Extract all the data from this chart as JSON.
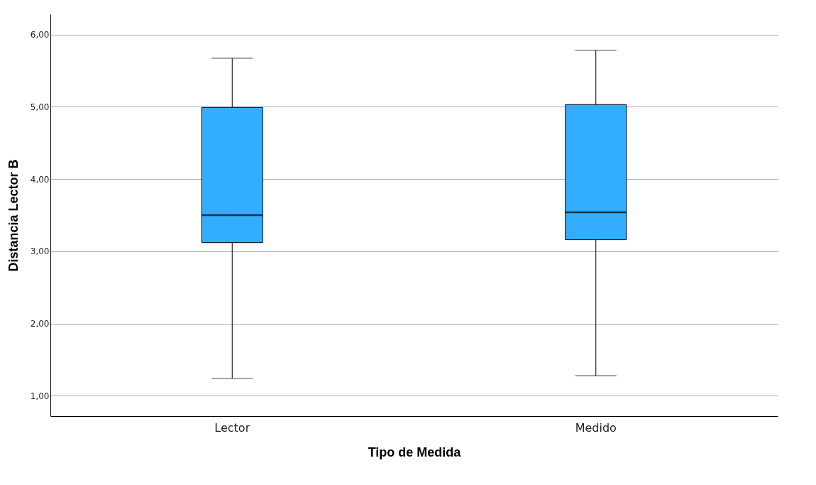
{
  "chart_data": {
    "type": "box",
    "xlabel": "Tipo de Medida",
    "ylabel": "Distancia Lector B",
    "categories": [
      "Lector",
      "Medido"
    ],
    "boxes": [
      {
        "low": 1.24,
        "q1": 3.12,
        "median": 3.5,
        "q3": 4.99,
        "high": 5.67
      },
      {
        "low": 1.28,
        "q1": 3.16,
        "median": 3.54,
        "q3": 5.03,
        "high": 5.78
      }
    ],
    "color": "#33adff",
    "ylim": [
      0.72,
      6.28
    ],
    "yticks": [
      {
        "value": 1,
        "label": "1,00"
      },
      {
        "value": 2,
        "label": "2,00"
      },
      {
        "value": 3,
        "label": "3,00"
      },
      {
        "value": 4,
        "label": "4,00"
      },
      {
        "value": 5,
        "label": "5,00"
      },
      {
        "value": 6,
        "label": "6,00"
      }
    ],
    "grid": "y"
  }
}
